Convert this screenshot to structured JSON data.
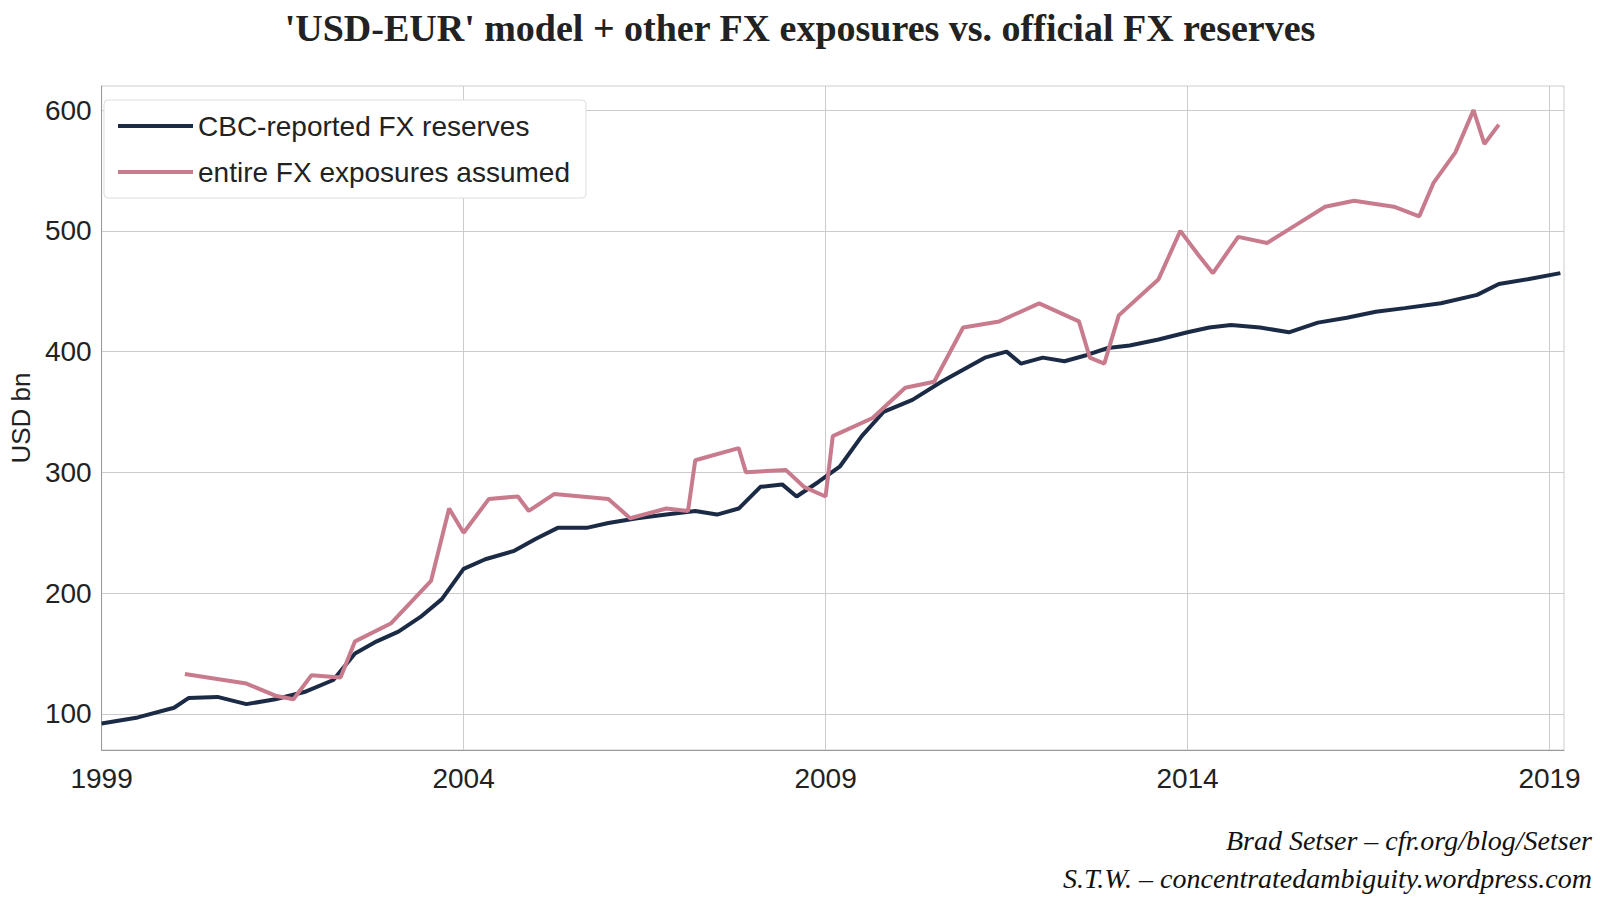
{
  "chart_data": {
    "type": "line",
    "title": "'USD-EUR' model + other FX exposures vs. official FX reserves",
    "y_label": "USD bn",
    "annotations": [
      "Brad Setser – cfr.org/blog/Setser",
      "S.T.W. – concentratedambiguity.wordpress.com"
    ],
    "xlim": [
      1999,
      2019.2
    ],
    "xticks": [
      1999,
      2004,
      2009,
      2014,
      2019
    ],
    "ylim": [
      70,
      620
    ],
    "yticks": [
      100,
      200,
      300,
      400,
      500,
      600
    ],
    "grid": true,
    "legend": "upper left",
    "series": [
      {
        "name": "CBC-reported FX reserves",
        "color": "#1c2b45",
        "x": [
          1999.0,
          1999.5,
          2000.0,
          2000.2,
          2000.6,
          2001.0,
          2001.4,
          2001.8,
          2002.2,
          2002.5,
          2002.8,
          2003.1,
          2003.4,
          2003.7,
          2004.0,
          2004.3,
          2004.7,
          2005.0,
          2005.3,
          2005.7,
          2006.0,
          2006.4,
          2006.8,
          2007.2,
          2007.5,
          2007.8,
          2008.1,
          2008.4,
          2008.6,
          2008.9,
          2009.2,
          2009.5,
          2009.8,
          2010.2,
          2010.6,
          2010.9,
          2011.2,
          2011.5,
          2011.7,
          2012.0,
          2012.3,
          2012.6,
          2012.9,
          2013.2,
          2013.6,
          2014.0,
          2014.3,
          2014.6,
          2015.0,
          2015.4,
          2015.8,
          2016.2,
          2016.6,
          2017.0,
          2017.5,
          2018.0,
          2018.3,
          2018.7,
          2019.15
        ],
        "values": [
          92,
          97,
          105,
          113,
          114,
          108,
          112,
          118,
          128,
          150,
          160,
          168,
          180,
          195,
          220,
          228,
          235,
          245,
          254,
          254,
          258,
          262,
          265,
          268,
          265,
          270,
          288,
          290,
          280,
          292,
          305,
          330,
          350,
          360,
          375,
          385,
          395,
          400,
          390,
          395,
          392,
          397,
          403,
          405,
          410,
          416,
          420,
          422,
          420,
          416,
          424,
          428,
          433,
          436,
          440,
          447,
          456,
          460,
          465
        ]
      },
      {
        "name": "entire FX exposures assumed",
        "color": "#c97b8e",
        "x": [
          2000.15,
          2001.0,
          2001.4,
          2001.65,
          2001.9,
          2002.3,
          2002.5,
          2003.0,
          2003.55,
          2003.8,
          2004.0,
          2004.35,
          2004.75,
          2004.9,
          2005.25,
          2006.0,
          2006.3,
          2006.8,
          2007.1,
          2007.2,
          2007.8,
          2007.9,
          2008.45,
          2008.7,
          2009.0,
          2009.1,
          2009.65,
          2010.1,
          2010.5,
          2010.9,
          2011.4,
          2011.95,
          2012.5,
          2012.65,
          2012.85,
          2013.05,
          2013.6,
          2013.9,
          2014.15,
          2014.35,
          2014.7,
          2015.1,
          2015.5,
          2015.9,
          2016.3,
          2016.85,
          2017.2,
          2017.4,
          2017.7,
          2017.95,
          2018.1,
          2018.3
        ],
        "values": [
          133,
          125,
          115,
          112,
          132,
          130,
          160,
          175,
          210,
          270,
          250,
          278,
          280,
          268,
          282,
          278,
          262,
          270,
          268,
          310,
          320,
          300,
          302,
          288,
          280,
          330,
          345,
          370,
          375,
          420,
          425,
          440,
          425,
          395,
          390,
          430,
          460,
          500,
          480,
          465,
          495,
          490,
          505,
          520,
          525,
          520,
          512,
          540,
          565,
          600,
          572,
          588
        ]
      }
    ]
  }
}
